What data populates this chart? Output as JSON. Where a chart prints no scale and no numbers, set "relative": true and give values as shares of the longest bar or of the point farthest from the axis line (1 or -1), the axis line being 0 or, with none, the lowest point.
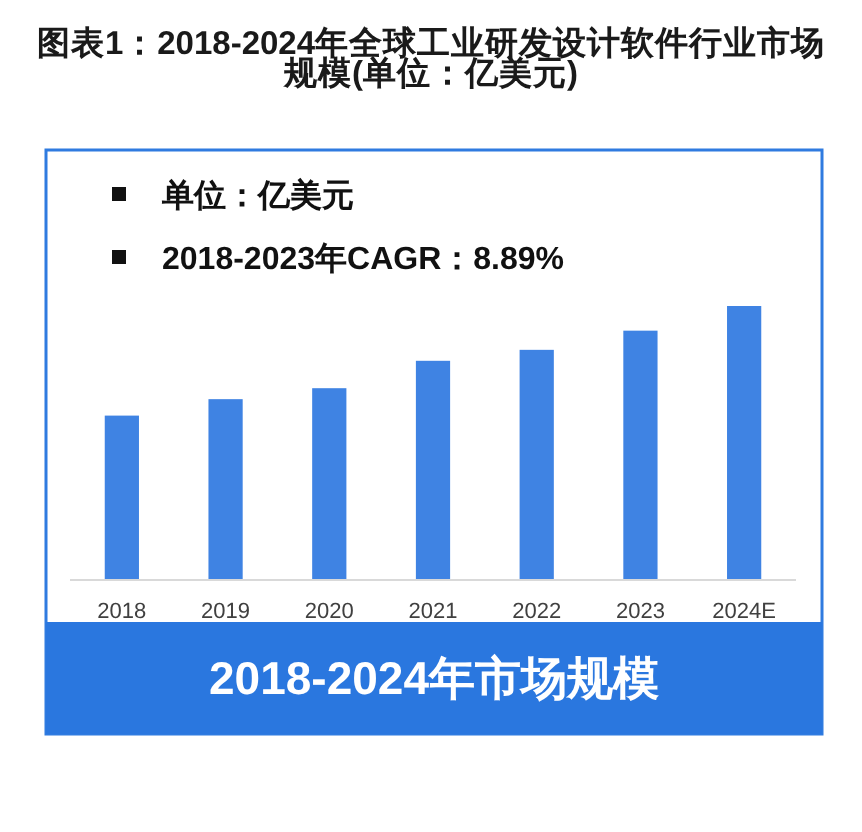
{
  "chart_data": {
    "type": "bar",
    "title": "图表1：2018-2024年全球工业研发设计软件行业市场规模(单位：亿美元)",
    "subtitle": "2018-2024年市场规模",
    "annotations": [
      "单位：亿美元",
      "2018-2023年CAGR：8.89%"
    ],
    "categories": [
      "2018",
      "2019",
      "2020",
      "2021",
      "2022",
      "2023",
      "2024E"
    ],
    "values": [
      0.6,
      0.66,
      0.7,
      0.8,
      0.84,
      0.91,
      1
    ],
    "color": "#3f83e3",
    "relative": true
  }
}
